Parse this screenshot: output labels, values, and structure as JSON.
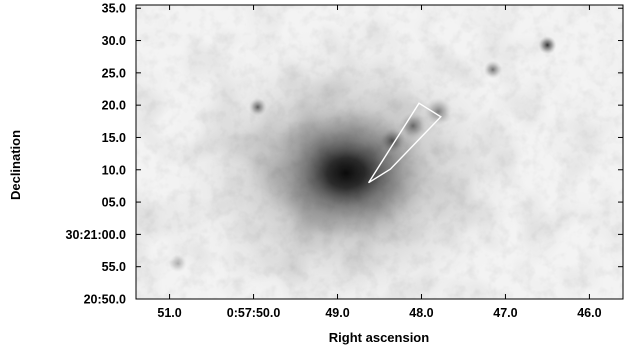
{
  "chart_data": {
    "type": "heatmap",
    "title": "",
    "xlabel": "Right ascension",
    "ylabel": "Declination",
    "x_ticks": [
      "51.0",
      "0:57:50.0",
      "49.0",
      "48.0",
      "47.0",
      "46.0"
    ],
    "y_ticks": [
      "35.0",
      "30.0",
      "25.0",
      "20.0",
      "15.0",
      "10.0",
      "05.0",
      "30:21:00.0",
      "55.0",
      "20:50.0"
    ],
    "x_tick_values_s": [
      51.0,
      50.0,
      49.0,
      48.0,
      47.0,
      46.0
    ],
    "y_tick_values_arcsec": [
      35,
      30,
      25,
      20,
      15,
      10,
      5,
      0,
      -5,
      -10
    ],
    "xlim_s": [
      51.4,
      45.6
    ],
    "ylim_arcsec": [
      -10,
      35.5
    ],
    "grid": false,
    "colormap": "greyscale-inverted",
    "features": [
      {
        "kind": "diffuse-core",
        "x_s": 48.9,
        "y_arcsec": 9.5,
        "intensity": 1.0
      },
      {
        "kind": "point-source",
        "x_s": 46.5,
        "y_arcsec": 29.3,
        "intensity": 0.85
      },
      {
        "kind": "point-source",
        "x_s": 47.15,
        "y_arcsec": 25.5,
        "intensity": 0.55
      },
      {
        "kind": "point-source",
        "x_s": 49.95,
        "y_arcsec": 19.7,
        "intensity": 0.65
      },
      {
        "kind": "point-source",
        "x_s": 50.9,
        "y_arcsec": -4.5,
        "intensity": 0.3
      },
      {
        "kind": "jet-knot",
        "x_s": 48.35,
        "y_arcsec": 14.5,
        "intensity": 0.6
      },
      {
        "kind": "jet-knot",
        "x_s": 48.1,
        "y_arcsec": 16.8,
        "intensity": 0.55
      },
      {
        "kind": "jet-knot",
        "x_s": 47.8,
        "y_arcsec": 19.0,
        "intensity": 0.45
      }
    ],
    "region_box": {
      "shape": "rotated-rectangle",
      "color": "#ffffff",
      "corners": [
        [
          48.63,
          8.0
        ],
        [
          48.37,
          10.1
        ],
        [
          47.77,
          18.2
        ],
        [
          48.03,
          20.3
        ]
      ]
    }
  }
}
